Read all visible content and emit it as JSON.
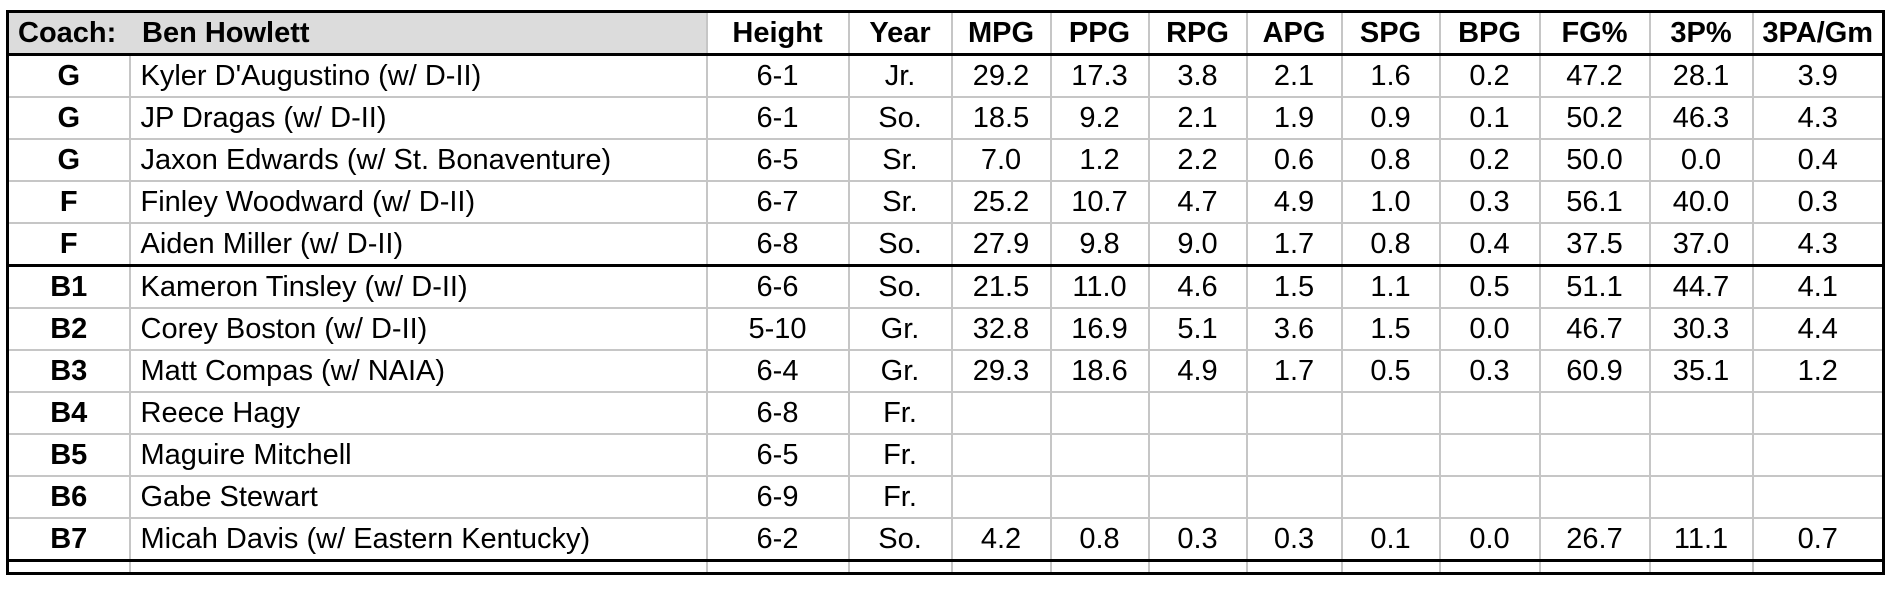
{
  "sheet": {
    "coach": {
      "label": "Coach:",
      "name": "Ben Howlett"
    },
    "columns": [
      "Height",
      "Year",
      "MPG",
      "PPG",
      "RPG",
      "APG",
      "SPG",
      "BPG",
      "FG%",
      "3P%",
      "3PA/Gm"
    ],
    "rows": [
      {
        "pos": "G",
        "name": "Kyler D'Augustino (w/ D-II)",
        "height": "6-1",
        "year": "Jr.",
        "stats": [
          "29.2",
          "17.3",
          "3.8",
          "2.1",
          "1.6",
          "0.2",
          "47.2",
          "28.1",
          "3.9"
        ]
      },
      {
        "pos": "G",
        "name": "JP Dragas (w/ D-II)",
        "height": "6-1",
        "year": "So.",
        "stats": [
          "18.5",
          "9.2",
          "2.1",
          "1.9",
          "0.9",
          "0.1",
          "50.2",
          "46.3",
          "4.3"
        ]
      },
      {
        "pos": "G",
        "name": "Jaxon Edwards (w/ St. Bonaventure)",
        "height": "6-5",
        "year": "Sr.",
        "stats": [
          "7.0",
          "1.2",
          "2.2",
          "0.6",
          "0.8",
          "0.2",
          "50.0",
          "0.0",
          "0.4"
        ]
      },
      {
        "pos": "F",
        "name": "Finley Woodward (w/ D-II)",
        "height": "6-7",
        "year": "Sr.",
        "stats": [
          "25.2",
          "10.7",
          "4.7",
          "4.9",
          "1.0",
          "0.3",
          "56.1",
          "40.0",
          "0.3"
        ]
      },
      {
        "pos": "F",
        "name": "Aiden Miller (w/ D-II)",
        "height": "6-8",
        "year": "So.",
        "stats": [
          "27.9",
          "9.8",
          "9.0",
          "1.7",
          "0.8",
          "0.4",
          "37.5",
          "37.0",
          "4.3"
        ]
      },
      {
        "pos": "B1",
        "name": "Kameron Tinsley (w/ D-II)",
        "height": "6-6",
        "year": "So.",
        "stats": [
          "21.5",
          "11.0",
          "4.6",
          "1.5",
          "1.1",
          "0.5",
          "51.1",
          "44.7",
          "4.1"
        ]
      },
      {
        "pos": "B2",
        "name": "Corey Boston (w/ D-II)",
        "height": "5-10",
        "year": "Gr.",
        "stats": [
          "32.8",
          "16.9",
          "5.1",
          "3.6",
          "1.5",
          "0.0",
          "46.7",
          "30.3",
          "4.4"
        ]
      },
      {
        "pos": "B3",
        "name": "Matt Compas (w/ NAIA)",
        "height": "6-4",
        "year": "Gr.",
        "stats": [
          "29.3",
          "18.6",
          "4.9",
          "1.7",
          "0.5",
          "0.3",
          "60.9",
          "35.1",
          "1.2"
        ]
      },
      {
        "pos": "B4",
        "name": "Reece Hagy",
        "height": "6-8",
        "year": "Fr.",
        "stats": [
          "",
          "",
          "",
          "",
          "",
          "",
          "",
          "",
          ""
        ]
      },
      {
        "pos": "B5",
        "name": "Maguire Mitchell",
        "height": "6-5",
        "year": "Fr.",
        "stats": [
          "",
          "",
          "",
          "",
          "",
          "",
          "",
          "",
          ""
        ]
      },
      {
        "pos": "B6",
        "name": "Gabe Stewart",
        "height": "6-9",
        "year": "Fr.",
        "stats": [
          "",
          "",
          "",
          "",
          "",
          "",
          "",
          "",
          ""
        ]
      },
      {
        "pos": "B7",
        "name": "Micah Davis (w/ Eastern Kentucky)",
        "height": "6-2",
        "year": "So.",
        "stats": [
          "4.2",
          "0.8",
          "0.3",
          "0.3",
          "0.1",
          "0.0",
          "26.7",
          "11.1",
          "0.7"
        ]
      }
    ],
    "bench_start_pos": "B1",
    "colors": {
      "coach_cell_fill": "#dcdcdc",
      "grid_line": "#c6c6c6",
      "thick_border": "#000000"
    }
  }
}
